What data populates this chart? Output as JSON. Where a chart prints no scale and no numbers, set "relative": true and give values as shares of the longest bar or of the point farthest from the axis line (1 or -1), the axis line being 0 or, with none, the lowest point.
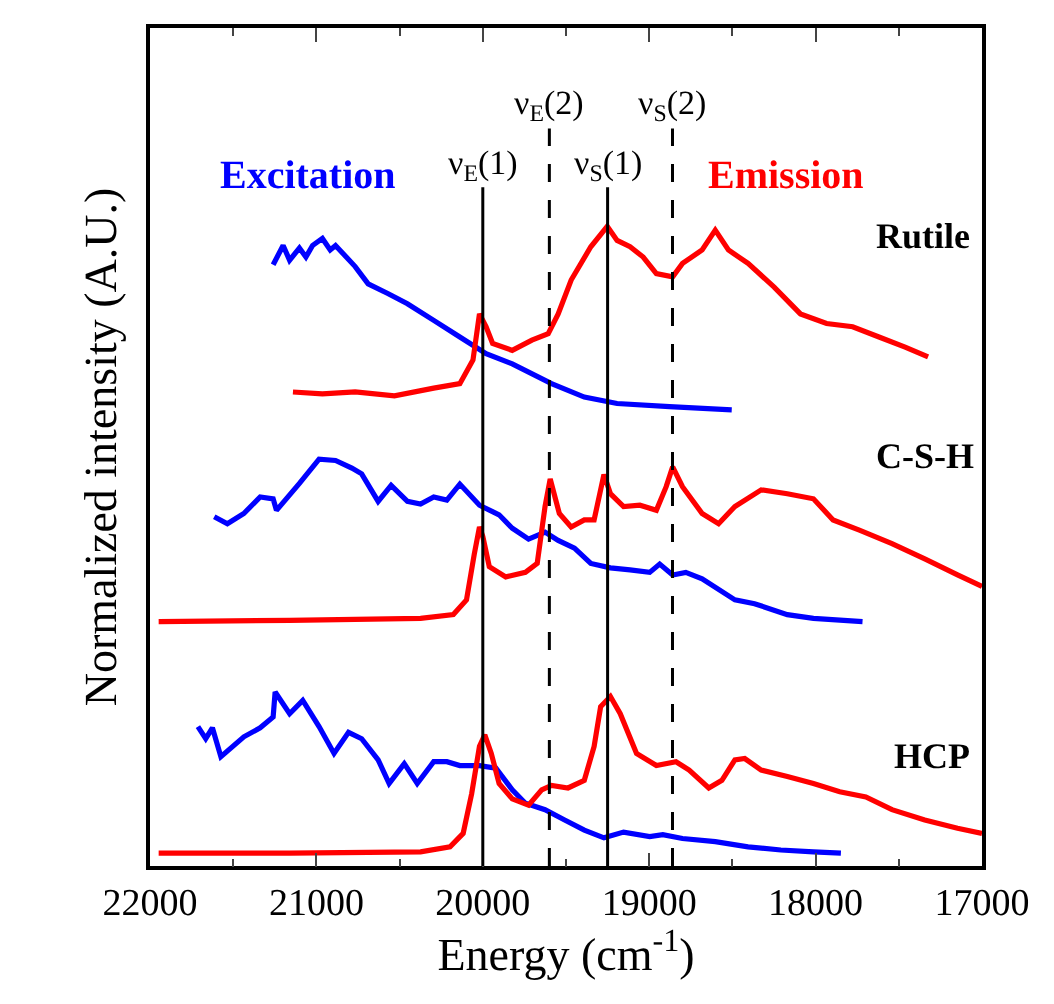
{
  "chart_data": {
    "type": "line",
    "relative": true,
    "xlabel": "Energy (cm$^{-1}$)",
    "ylabel": "Normalized intensity (A.U.)",
    "xlim": [
      22000,
      17000
    ],
    "xticks": [
      22000,
      21000,
      20000,
      19000,
      18000,
      17000
    ],
    "marker": "none",
    "line_style": "solid",
    "annotations": [
      "Excitation",
      "Emission",
      "Rutile",
      "C-S-H",
      "HCP"
    ],
    "ref_lines": [
      {
        "axis": "x",
        "value": 20000,
        "label": "ν$_{E}$(1)",
        "line_style": "solid",
        "color": "#000000"
      },
      {
        "axis": "x",
        "value": 19600,
        "label": "ν$_{E}$(2)",
        "line_style": "dashed",
        "color": "#000000"
      },
      {
        "axis": "x",
        "value": 19250,
        "label": "ν$_{S}$(1)",
        "line_style": "solid",
        "color": "#000000"
      },
      {
        "axis": "x",
        "value": 18860,
        "label": "ν$_{S}$(2)",
        "line_style": "dashed",
        "color": "#000000"
      }
    ],
    "series": [
      {
        "color": "#0000ff",
        "x": [
          21260,
          21200,
          21161,
          21102,
          21063,
          21023,
          20964,
          20917,
          20885,
          20767,
          20689,
          20571,
          20453,
          20295,
          20138,
          19980,
          19823,
          19587,
          19390,
          19193,
          18878,
          18504
        ],
        "values": [
          0.94,
          0.97,
          0.947,
          0.966,
          0.952,
          0.97,
          0.981,
          0.963,
          0.97,
          0.937,
          0.91,
          0.895,
          0.879,
          0.853,
          0.827,
          0.801,
          0.785,
          0.754,
          0.733,
          0.723,
          0.718,
          0.713
        ]
      },
      {
        "color": "#ff0000",
        "x": [
          21141,
          20964,
          20767,
          20531,
          20295,
          20138,
          20059,
          20020,
          19980,
          19941,
          19823,
          19705,
          19607,
          19547,
          19469,
          19351,
          19252,
          19193,
          19115,
          19036,
          18957,
          18859,
          18800,
          18682,
          18603,
          18524,
          18406,
          18249,
          18091,
          17934,
          17777,
          17619,
          17462,
          17324
        ],
        "values": [
          0.741,
          0.738,
          0.741,
          0.735,
          0.747,
          0.754,
          0.791,
          0.863,
          0.843,
          0.817,
          0.806,
          0.822,
          0.832,
          0.863,
          0.916,
          0.968,
          1.0,
          0.978,
          0.968,
          0.952,
          0.926,
          0.921,
          0.942,
          0.963,
          0.994,
          0.963,
          0.942,
          0.905,
          0.863,
          0.848,
          0.843,
          0.827,
          0.811,
          0.796
        ]
      },
      {
        "color": "#0000ff",
        "x": [
          21614,
          21535,
          21436,
          21338,
          21260,
          21240,
          21102,
          20984,
          20885,
          20787,
          20728,
          20629,
          20551,
          20453,
          20374,
          20295,
          20216,
          20138,
          20020,
          19902,
          19823,
          19725,
          19626,
          19547,
          19449,
          19351,
          19233,
          19115,
          18997,
          18937,
          18859,
          18780,
          18682,
          18485,
          18367,
          18170,
          18013,
          17718
        ],
        "values": [
          0.546,
          0.535,
          0.551,
          0.577,
          0.574,
          0.556,
          0.598,
          0.636,
          0.634,
          0.622,
          0.613,
          0.57,
          0.595,
          0.57,
          0.566,
          0.577,
          0.572,
          0.597,
          0.564,
          0.549,
          0.528,
          0.511,
          0.522,
          0.509,
          0.497,
          0.473,
          0.466,
          0.463,
          0.459,
          0.472,
          0.455,
          0.459,
          0.449,
          0.416,
          0.41,
          0.393,
          0.387,
          0.382
        ]
      },
      {
        "color": "#ff0000",
        "x": [
          21948,
          21161,
          20374,
          20177,
          20098,
          20051,
          20020,
          20000,
          19961,
          19862,
          19744,
          19673,
          19626,
          19595,
          19540,
          19469,
          19390,
          19331,
          19272,
          19233,
          19154,
          19056,
          18957,
          18898,
          18859,
          18800,
          18682,
          18583,
          18485,
          18327,
          18170,
          18013,
          17895,
          17737,
          17541,
          17344,
          17147,
          17000
        ],
        "values": [
          0.382,
          0.384,
          0.387,
          0.393,
          0.416,
          0.488,
          0.53,
          0.515,
          0.468,
          0.452,
          0.459,
          0.473,
          0.562,
          0.605,
          0.551,
          0.53,
          0.541,
          0.541,
          0.612,
          0.582,
          0.562,
          0.564,
          0.556,
          0.593,
          0.624,
          0.593,
          0.551,
          0.535,
          0.562,
          0.588,
          0.582,
          0.574,
          0.541,
          0.525,
          0.504,
          0.48,
          0.455,
          0.437
        ]
      },
      {
        "color": "#0000ff",
        "x": [
          21712,
          21665,
          21625,
          21574,
          21436,
          21338,
          21260,
          21248,
          21161,
          21082,
          20984,
          20894,
          20807,
          20728,
          20629,
          20563,
          20472,
          20394,
          20295,
          20216,
          20138,
          20020,
          19921,
          19823,
          19744,
          19626,
          19508,
          19390,
          19272,
          19154,
          18997,
          18918,
          18800,
          18603,
          18406,
          18209,
          18013,
          17848
        ],
        "values": [
          0.218,
          0.199,
          0.216,
          0.171,
          0.202,
          0.216,
          0.233,
          0.272,
          0.238,
          0.259,
          0.218,
          0.176,
          0.209,
          0.199,
          0.166,
          0.129,
          0.16,
          0.129,
          0.163,
          0.163,
          0.157,
          0.157,
          0.153,
          0.119,
          0.098,
          0.088,
          0.072,
          0.056,
          0.044,
          0.053,
          0.046,
          0.049,
          0.043,
          0.038,
          0.03,
          0.025,
          0.022,
          0.02
        ]
      },
      {
        "color": "#ff0000",
        "x": [
          21948,
          21161,
          20374,
          20197,
          20118,
          20067,
          20020,
          19988,
          19949,
          19902,
          19823,
          19725,
          19646,
          19587,
          19488,
          19390,
          19331,
          19292,
          19233,
          19174,
          19076,
          18957,
          18839,
          18760,
          18642,
          18563,
          18485,
          18426,
          18327,
          18170,
          18013,
          17855,
          17698,
          17541,
          17344,
          17147,
          17000
        ],
        "values": [
          0.02,
          0.02,
          0.022,
          0.03,
          0.051,
          0.113,
          0.187,
          0.205,
          0.176,
          0.129,
          0.105,
          0.095,
          0.119,
          0.126,
          0.122,
          0.134,
          0.187,
          0.249,
          0.265,
          0.238,
          0.176,
          0.157,
          0.163,
          0.15,
          0.122,
          0.134,
          0.166,
          0.168,
          0.15,
          0.14,
          0.129,
          0.116,
          0.108,
          0.088,
          0.072,
          0.059,
          0.051
        ]
      }
    ]
  }
}
